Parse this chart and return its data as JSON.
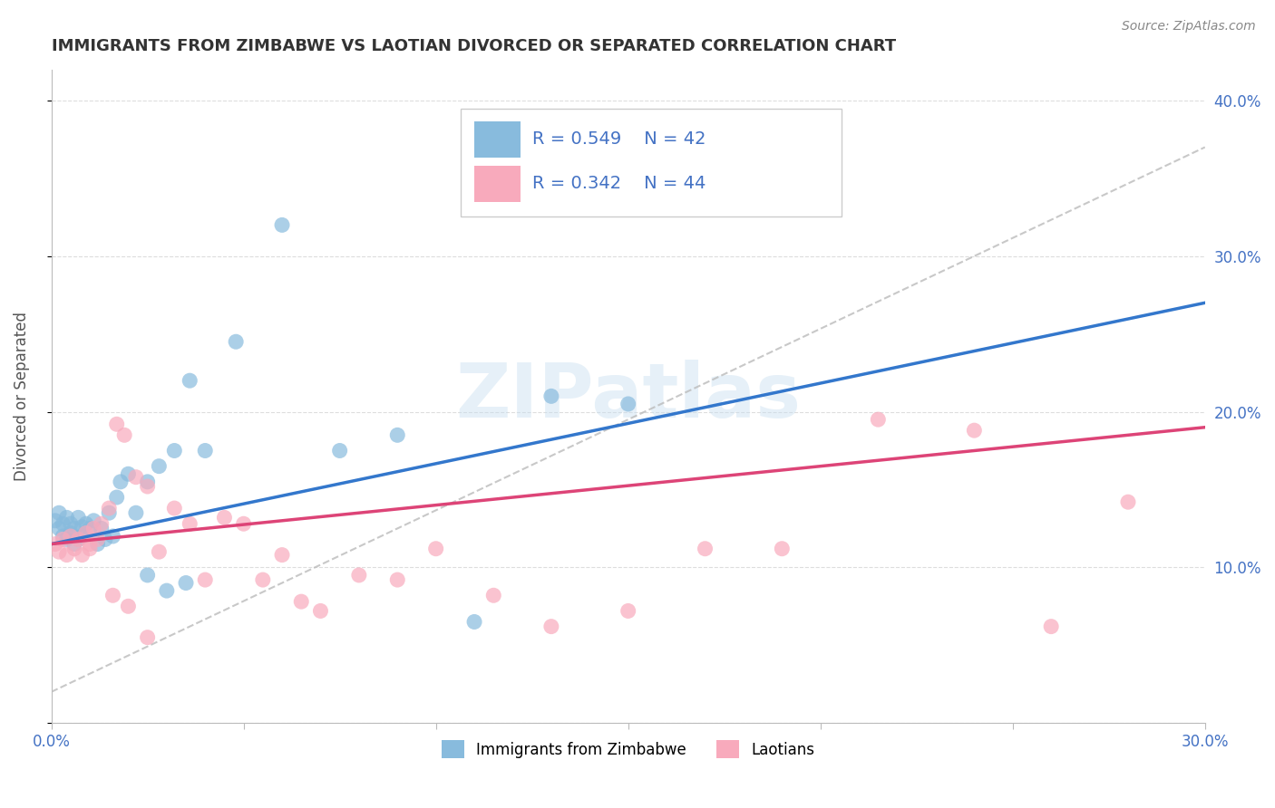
{
  "title": "IMMIGRANTS FROM ZIMBABWE VS LAOTIAN DIVORCED OR SEPARATED CORRELATION CHART",
  "source": "Source: ZipAtlas.com",
  "ylabel": "Divorced or Separated",
  "xlim": [
    0.0,
    0.3
  ],
  "ylim": [
    0.0,
    0.42
  ],
  "legend_R1": "0.549",
  "legend_N1": "42",
  "legend_R2": "0.342",
  "legend_N2": "44",
  "color_blue": "#88bbdd",
  "color_pink": "#f8aabc",
  "color_trendline_blue": "#3377cc",
  "color_trendline_pink": "#dd4477",
  "color_trendline_dashed": "#bbbbbb",
  "background_color": "#ffffff",
  "blue_scatter_x": [
    0.001,
    0.002,
    0.002,
    0.003,
    0.003,
    0.004,
    0.004,
    0.005,
    0.005,
    0.006,
    0.006,
    0.007,
    0.007,
    0.008,
    0.008,
    0.009,
    0.01,
    0.011,
    0.012,
    0.013,
    0.014,
    0.015,
    0.016,
    0.017,
    0.018,
    0.02,
    0.022,
    0.025,
    0.028,
    0.032,
    0.036,
    0.04,
    0.048,
    0.06,
    0.075,
    0.09,
    0.11,
    0.13,
    0.15,
    0.025,
    0.03,
    0.035
  ],
  "blue_scatter_y": [
    0.13,
    0.135,
    0.125,
    0.12,
    0.128,
    0.118,
    0.132,
    0.122,
    0.128,
    0.115,
    0.125,
    0.132,
    0.118,
    0.126,
    0.12,
    0.128,
    0.125,
    0.13,
    0.115,
    0.125,
    0.118,
    0.135,
    0.12,
    0.145,
    0.155,
    0.16,
    0.135,
    0.155,
    0.165,
    0.175,
    0.22,
    0.175,
    0.245,
    0.32,
    0.175,
    0.185,
    0.065,
    0.21,
    0.205,
    0.095,
    0.085,
    0.09
  ],
  "pink_scatter_x": [
    0.001,
    0.002,
    0.003,
    0.004,
    0.005,
    0.006,
    0.007,
    0.008,
    0.009,
    0.01,
    0.011,
    0.012,
    0.013,
    0.015,
    0.017,
    0.019,
    0.022,
    0.025,
    0.028,
    0.032,
    0.036,
    0.04,
    0.045,
    0.05,
    0.055,
    0.06,
    0.065,
    0.07,
    0.08,
    0.09,
    0.1,
    0.115,
    0.13,
    0.15,
    0.17,
    0.19,
    0.215,
    0.24,
    0.26,
    0.28,
    0.01,
    0.016,
    0.02,
    0.025
  ],
  "pink_scatter_y": [
    0.115,
    0.11,
    0.118,
    0.108,
    0.12,
    0.112,
    0.118,
    0.108,
    0.122,
    0.112,
    0.125,
    0.118,
    0.128,
    0.138,
    0.192,
    0.185,
    0.158,
    0.152,
    0.11,
    0.138,
    0.128,
    0.092,
    0.132,
    0.128,
    0.092,
    0.108,
    0.078,
    0.072,
    0.095,
    0.092,
    0.112,
    0.082,
    0.062,
    0.072,
    0.112,
    0.112,
    0.195,
    0.188,
    0.062,
    0.142,
    0.115,
    0.082,
    0.075,
    0.055
  ]
}
